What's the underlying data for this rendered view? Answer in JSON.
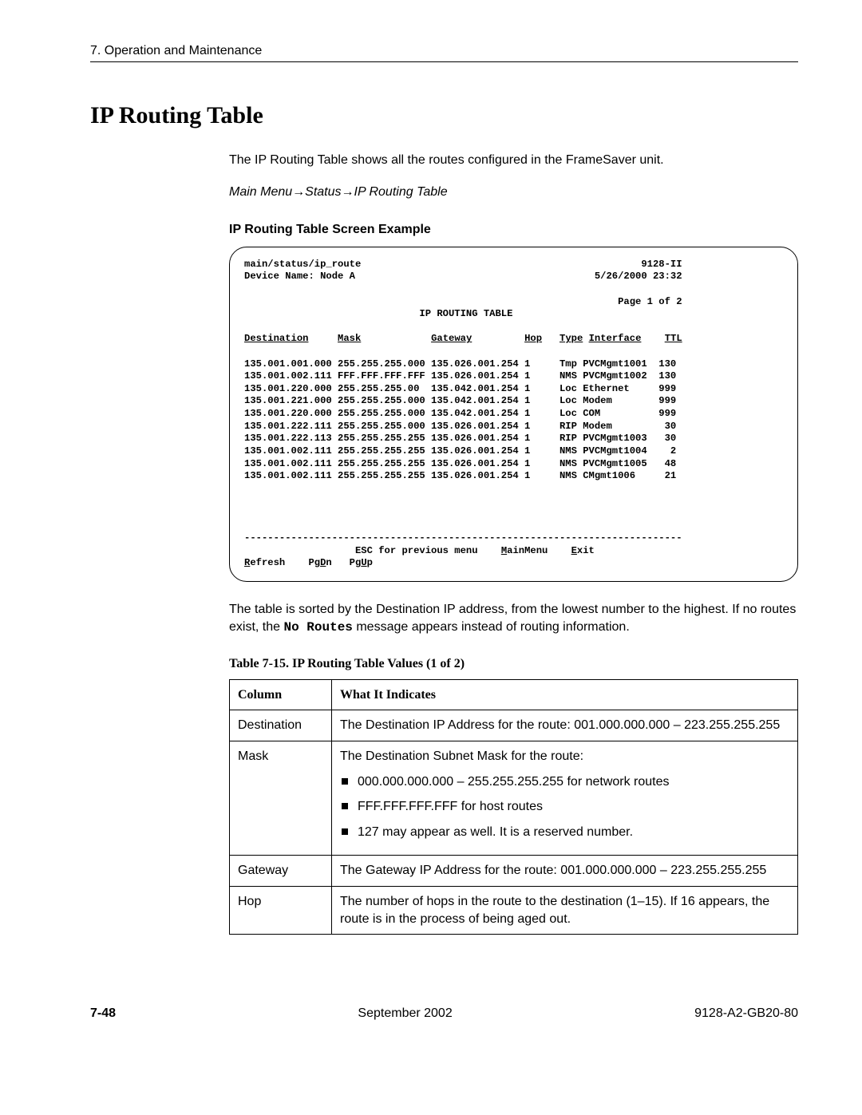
{
  "header": {
    "running": "7. Operation and Maintenance"
  },
  "title": "IP Routing Table",
  "intro": "The IP Routing Table shows all the routes configured in the FrameSaver unit.",
  "navpath": "Main Menu→Status→IP Routing Table",
  "example_label": "IP Routing Table Screen Example",
  "terminal": {
    "path": "main/status/ip_route",
    "model": "9128-II",
    "device_label": "Device Name: Node A",
    "datetime": "5/26/2000 23:32",
    "page": "Page 1 of 2",
    "screen_title": "IP ROUTING TABLE",
    "columns": {
      "dest": "Destination",
      "mask": "Mask",
      "gw": "Gateway",
      "hop": "Hop",
      "type": "Type",
      "iface": "Interface",
      "ttl": "TTL"
    },
    "rows": [
      {
        "dest": "135.001.001.000",
        "mask": "255.255.255.000",
        "gw": "135.026.001.254",
        "hop": "1",
        "type": "Tmp",
        "iface": "PVCMgmt1001",
        "ttl": "130"
      },
      {
        "dest": "135.001.002.111",
        "mask": "FFF.FFF.FFF.FFF",
        "gw": "135.026.001.254",
        "hop": "1",
        "type": "NMS",
        "iface": "PVCMgmt1002",
        "ttl": "130"
      },
      {
        "dest": "135.001.220.000",
        "mask": "255.255.255.00",
        "gw": "135.042.001.254",
        "hop": "1",
        "type": "Loc",
        "iface": "Ethernet",
        "ttl": "999"
      },
      {
        "dest": "135.001.221.000",
        "mask": "255.255.255.000",
        "gw": "135.042.001.254",
        "hop": "1",
        "type": "Loc",
        "iface": "Modem",
        "ttl": "999"
      },
      {
        "dest": "135.001.220.000",
        "mask": "255.255.255.000",
        "gw": "135.042.001.254",
        "hop": "1",
        "type": "Loc",
        "iface": "COM",
        "ttl": "999"
      },
      {
        "dest": "135.001.222.111",
        "mask": "255.255.255.000",
        "gw": "135.026.001.254",
        "hop": "1",
        "type": "RIP",
        "iface": "Modem",
        "ttl": "30"
      },
      {
        "dest": "135.001.222.113",
        "mask": "255.255.255.255",
        "gw": "135.026.001.254",
        "hop": "1",
        "type": "RIP",
        "iface": "PVCMgmt1003",
        "ttl": "30"
      },
      {
        "dest": "135.001.002.111",
        "mask": "255.255.255.255",
        "gw": "135.026.001.254",
        "hop": "1",
        "type": "NMS",
        "iface": "PVCMgmt1004",
        "ttl": "2"
      },
      {
        "dest": "135.001.002.111",
        "mask": "255.255.255.255",
        "gw": "135.026.001.254",
        "hop": "1",
        "type": "NMS",
        "iface": "PVCMgmt1005",
        "ttl": "48"
      },
      {
        "dest": "135.001.002.111",
        "mask": "255.255.255.255",
        "gw": "135.026.001.254",
        "hop": "1",
        "type": "NMS",
        "iface": "CMgmt1006",
        "ttl": "21"
      }
    ],
    "esc_label": "ESC for previous menu",
    "mainmenu": "MainMenu",
    "exit": "Exit",
    "refresh": "Refresh",
    "pgdn": "PgDn",
    "pgup": "PgUp"
  },
  "sort_para_pre": "The table is sorted by the Destination IP address, from the lowest number to the highest. If no routes exist, the ",
  "sort_para_code": "No Routes",
  "sort_para_post": " message appears instead of routing information.",
  "table_caption": "Table 7-15.  IP Routing Table Values (1 of 2)",
  "defs": {
    "head_col": "Column",
    "head_desc": "What It Indicates",
    "rows": [
      {
        "col": "Destination",
        "desc": "The Destination IP Address for the route: 001.000.000.000 – 223.255.255.255"
      },
      {
        "col": "Mask",
        "desc_lead": "The Destination Subnet Mask for the route:",
        "bullets": [
          "000.000.000.000 – 255.255.255.255 for network routes",
          "FFF.FFF.FFF.FFF for host routes",
          "127 may appear as well. It is a reserved number."
        ]
      },
      {
        "col": "Gateway",
        "desc": "The Gateway IP Address for the route: 001.000.000.000 – 223.255.255.255"
      },
      {
        "col": "Hop",
        "desc": "The number of hops in the route to the destination (1–15). If 16 appears, the route is in the process of being aged out."
      }
    ]
  },
  "footer": {
    "page": "7-48",
    "date": "September 2002",
    "doc": "9128-A2-GB20-80"
  }
}
